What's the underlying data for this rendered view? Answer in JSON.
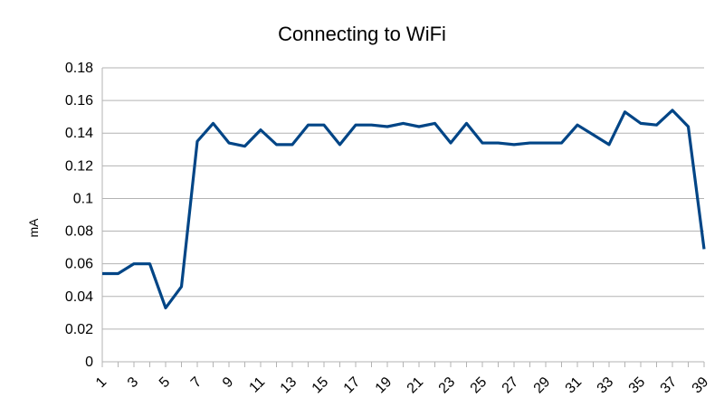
{
  "chart_data": {
    "type": "line",
    "title": "Connecting to WiFi",
    "xlabel": "",
    "ylabel": "mA",
    "x": [
      1,
      2,
      3,
      4,
      5,
      6,
      7,
      8,
      9,
      10,
      11,
      12,
      13,
      14,
      15,
      16,
      17,
      18,
      19,
      20,
      21,
      22,
      23,
      24,
      25,
      26,
      27,
      28,
      29,
      30,
      31,
      32,
      33,
      34,
      35,
      36,
      37,
      38,
      39
    ],
    "x_tick_labels": [
      "1",
      "3",
      "5",
      "7",
      "9",
      "11",
      "13",
      "15",
      "17",
      "19",
      "21",
      "23",
      "25",
      "27",
      "29",
      "31",
      "33",
      "35",
      "37",
      "39"
    ],
    "series": [
      {
        "values": [
          0.054,
          0.054,
          0.06,
          0.06,
          0.033,
          0.046,
          0.135,
          0.146,
          0.134,
          0.132,
          0.142,
          0.133,
          0.133,
          0.145,
          0.145,
          0.133,
          0.145,
          0.145,
          0.144,
          0.146,
          0.144,
          0.146,
          0.134,
          0.146,
          0.134,
          0.134,
          0.133,
          0.134,
          0.134,
          0.134,
          0.145,
          0.139,
          0.133,
          0.153,
          0.146,
          0.145,
          0.154,
          0.144,
          0.069
        ],
        "color": "#004586"
      }
    ],
    "ylim": [
      0,
      0.18
    ],
    "y_ticks": [
      "0",
      "0.02",
      "0.04",
      "0.06",
      "0.08",
      "0.1",
      "0.12",
      "0.14",
      "0.16",
      "0.18"
    ],
    "grid": "horizontal",
    "legend": "none"
  }
}
